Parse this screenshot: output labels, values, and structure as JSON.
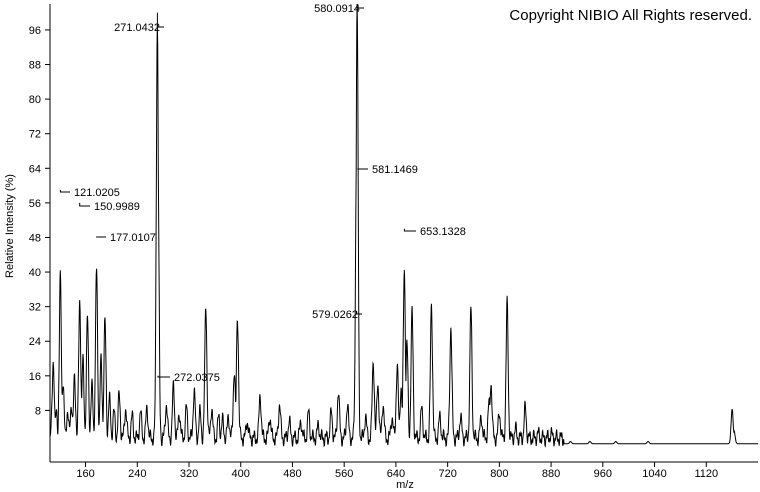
{
  "copyright": "Copyright NIBIO All Rights reserved.",
  "chart_data": {
    "type": "line",
    "xlabel": "m/z",
    "ylabel": "Relative Intensity (%)",
    "xlim": [
      105,
      1200
    ],
    "ylim": [
      0,
      102
    ],
    "grid": false,
    "x_ticks": [
      160,
      240,
      320,
      400,
      480,
      560,
      640,
      720,
      800,
      880,
      960,
      1040,
      1120
    ],
    "y_ticks": [
      8,
      16,
      24,
      32,
      40,
      48,
      56,
      64,
      72,
      80,
      88,
      96
    ],
    "peak_labels": [
      {
        "mz": 121.0205,
        "text": "121.0205",
        "intensity": 59
      },
      {
        "mz": 150.9989,
        "text": "150.9989",
        "intensity": 56
      },
      {
        "mz": 177.0107,
        "text": "177.0107",
        "intensity": 48
      },
      {
        "mz": 271.0432,
        "text": "271.0432",
        "intensity": 100
      },
      {
        "mz": 272.0375,
        "text": "272.0375",
        "intensity": 16
      },
      {
        "mz": 579.0262,
        "text": "579.0262",
        "intensity": 31
      },
      {
        "mz": 580.0914,
        "text": "580.0914",
        "intensity": 102
      },
      {
        "mz": 581.1469,
        "text": "581.1469",
        "intensity": 64
      },
      {
        "mz": 653.1328,
        "text": "653.1328",
        "intensity": 50
      }
    ],
    "peaks": [
      [
        110,
        18
      ],
      [
        115,
        6
      ],
      [
        121,
        37
      ],
      [
        125,
        13
      ],
      [
        132,
        6
      ],
      [
        138,
        8
      ],
      [
        143,
        14
      ],
      [
        151,
        32
      ],
      [
        156,
        18
      ],
      [
        163,
        28
      ],
      [
        170,
        12
      ],
      [
        177,
        39
      ],
      [
        184,
        18
      ],
      [
        190,
        27
      ],
      [
        197,
        9
      ],
      [
        204,
        6
      ],
      [
        212,
        10
      ],
      [
        222,
        7
      ],
      [
        232,
        5
      ],
      [
        245,
        6
      ],
      [
        255,
        7
      ],
      [
        271,
        96
      ],
      [
        272,
        64
      ],
      [
        285,
        8
      ],
      [
        296,
        12
      ],
      [
        305,
        6
      ],
      [
        316,
        7
      ],
      [
        328,
        11
      ],
      [
        337,
        6
      ],
      [
        346,
        31
      ],
      [
        355,
        7
      ],
      [
        366,
        5
      ],
      [
        372,
        4
      ],
      [
        381,
        5
      ],
      [
        390,
        16
      ],
      [
        395,
        28
      ],
      [
        410,
        4
      ],
      [
        430,
        10
      ],
      [
        445,
        5
      ],
      [
        460,
        8
      ],
      [
        475,
        4
      ],
      [
        493,
        4
      ],
      [
        505,
        6
      ],
      [
        520,
        3
      ],
      [
        540,
        6
      ],
      [
        551,
        11
      ],
      [
        565,
        8
      ],
      [
        579,
        64
      ],
      [
        580,
        100
      ],
      [
        593,
        5
      ],
      [
        605,
        18
      ],
      [
        612,
        13
      ],
      [
        620,
        8
      ],
      [
        634,
        5
      ],
      [
        642,
        17
      ],
      [
        648,
        12
      ],
      [
        653,
        39
      ],
      [
        657,
        22
      ],
      [
        665,
        29
      ],
      [
        680,
        7
      ],
      [
        695,
        31
      ],
      [
        708,
        5
      ],
      [
        725,
        26
      ],
      [
        740,
        5
      ],
      [
        756,
        30
      ],
      [
        772,
        5
      ],
      [
        784,
        8
      ],
      [
        787,
        13
      ],
      [
        800,
        6
      ],
      [
        812,
        31
      ],
      [
        825,
        2
      ],
      [
        840,
        7
      ],
      [
        860,
        1
      ],
      [
        880,
        1
      ],
      [
        910,
        0.5
      ],
      [
        940,
        0.5
      ],
      [
        980,
        0.5
      ],
      [
        1030,
        0.5
      ],
      [
        1160,
        8
      ],
      [
        1163,
        3
      ]
    ]
  }
}
